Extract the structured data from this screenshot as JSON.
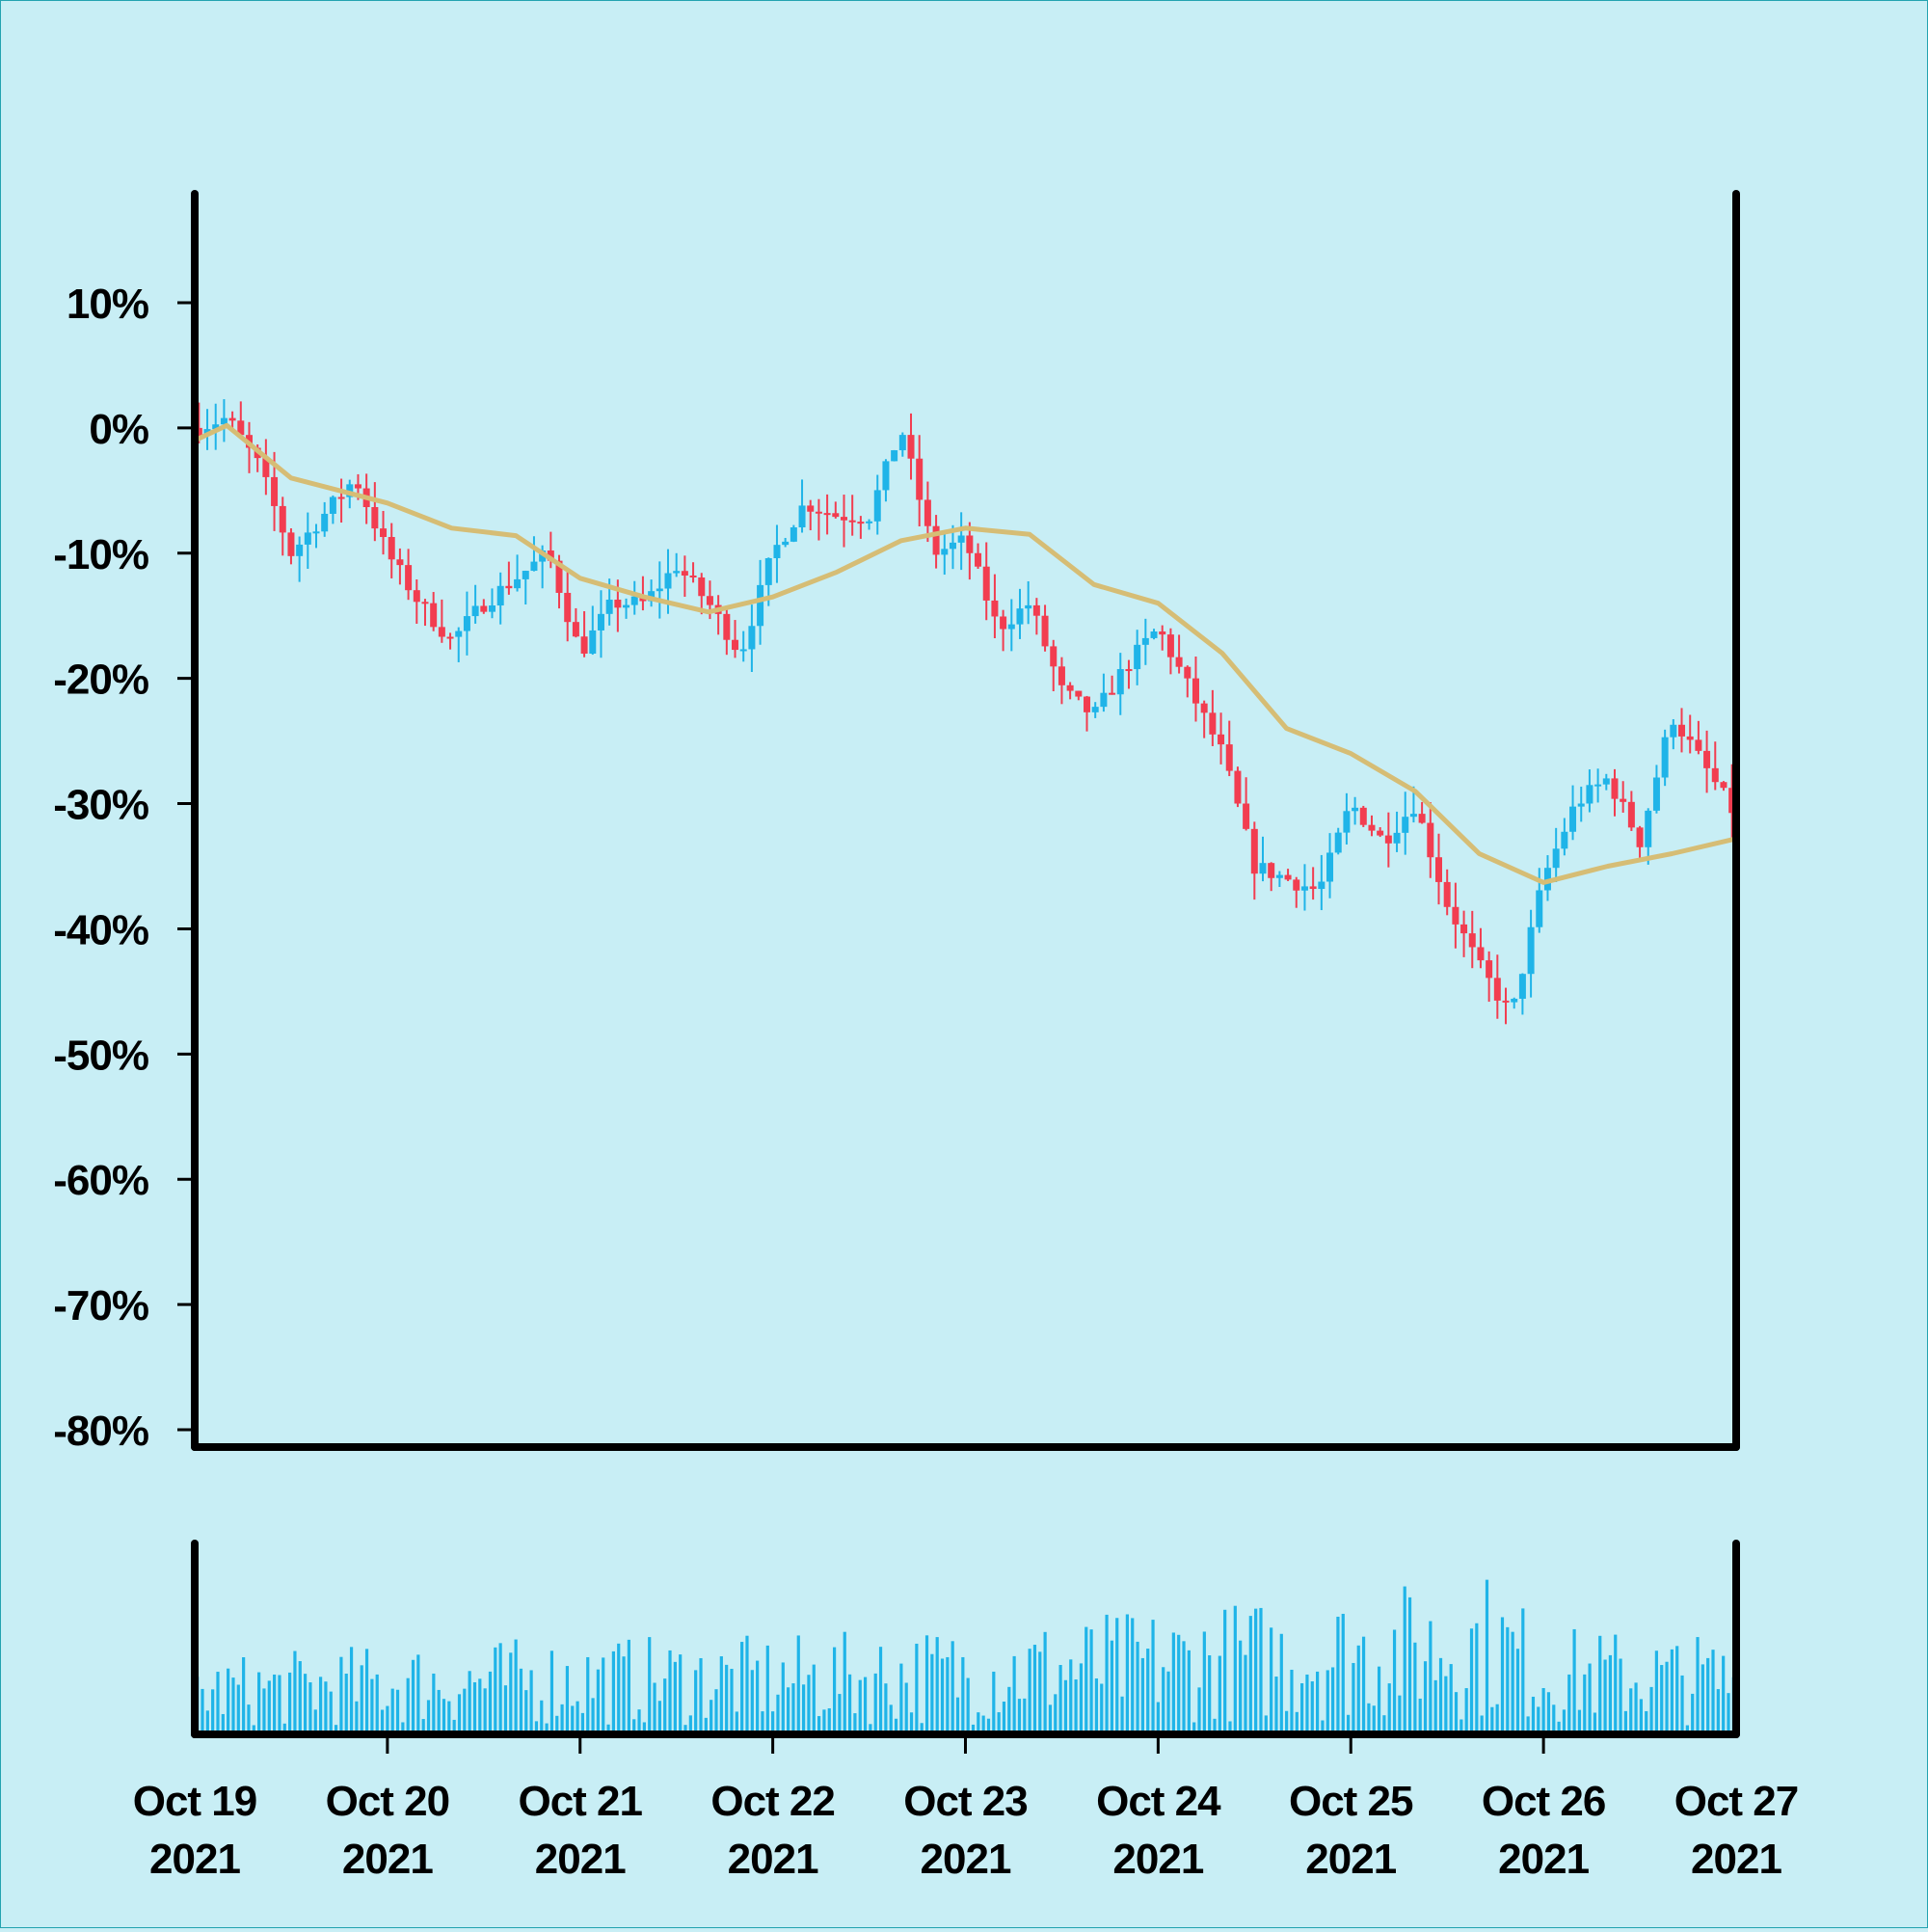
{
  "chart_data": {
    "type": "candlestick",
    "x_range": [
      "2021-10-19",
      "2021-10-27"
    ],
    "x_tick_labels": [
      {
        "month_day": "Oct 19",
        "year": "2021"
      },
      {
        "month_day": "Oct 20",
        "year": "2021"
      },
      {
        "month_day": "Oct 21",
        "year": "2021"
      },
      {
        "month_day": "Oct 22",
        "year": "2021"
      },
      {
        "month_day": "Oct 23",
        "year": "2021"
      },
      {
        "month_day": "Oct 24",
        "year": "2021"
      },
      {
        "month_day": "Oct 25",
        "year": "2021"
      },
      {
        "month_day": "Oct 26",
        "year": "2021"
      },
      {
        "month_day": "Oct 27",
        "year": "2021"
      }
    ],
    "y_ticks": [
      10,
      0,
      -10,
      -20,
      -30,
      -40,
      -50,
      -60,
      -70,
      -80
    ],
    "y_tick_labels": [
      "10%",
      "0%",
      "-10%",
      "-20%",
      "-30%",
      "-40%",
      "-50%",
      "-60%",
      "-70%",
      "-80%"
    ],
    "ylim": [
      -80,
      10
    ],
    "grid": false,
    "colors": {
      "up": "#1fb4e8",
      "down": "#f23d50",
      "moving_average": "#d6bd75",
      "volume": "#1fb4e8",
      "axis": "#000000",
      "background": "#c8eef5"
    },
    "close_path_pct": [
      [
        "2021-10-19 00:00",
        0
      ],
      [
        "2021-10-19 04:00",
        0.8
      ],
      [
        "2021-10-19 08:00",
        -3
      ],
      [
        "2021-10-19 12:00",
        -10
      ],
      [
        "2021-10-19 16:00",
        -7
      ],
      [
        "2021-10-19 20:00",
        -4
      ],
      [
        "2021-10-20 00:00",
        -10
      ],
      [
        "2021-10-20 04:00",
        -14
      ],
      [
        "2021-10-20 08:00",
        -17
      ],
      [
        "2021-10-20 12:00",
        -14
      ],
      [
        "2021-10-20 16:00",
        -12
      ],
      [
        "2021-10-20 20:00",
        -10
      ],
      [
        "2021-10-21 00:00",
        -18
      ],
      [
        "2021-10-21 04:00",
        -14
      ],
      [
        "2021-10-21 08:00",
        -14
      ],
      [
        "2021-10-21 12:00",
        -11
      ],
      [
        "2021-10-21 16:00",
        -14
      ],
      [
        "2021-10-21 20:00",
        -18
      ],
      [
        "2021-10-22 00:00",
        -10
      ],
      [
        "2021-10-22 04:00",
        -6
      ],
      [
        "2021-10-22 08:00",
        -7
      ],
      [
        "2021-10-22 12:00",
        -7
      ],
      [
        "2021-10-22 16:00",
        0
      ],
      [
        "2021-10-22 20:00",
        -10
      ],
      [
        "2021-10-23 00:00",
        -9
      ],
      [
        "2021-10-23 04:00",
        -16
      ],
      [
        "2021-10-23 08:00",
        -14
      ],
      [
        "2021-10-23 12:00",
        -21
      ],
      [
        "2021-10-23 16:00",
        -23
      ],
      [
        "2021-10-23 20:00",
        -19
      ],
      [
        "2021-10-24 00:00",
        -16
      ],
      [
        "2021-10-24 04:00",
        -21
      ],
      [
        "2021-10-24 08:00",
        -26
      ],
      [
        "2021-10-24 12:00",
        -35
      ],
      [
        "2021-10-24 16:00",
        -36
      ],
      [
        "2021-10-24 20:00",
        -37
      ],
      [
        "2021-10-25 00:00",
        -30
      ],
      [
        "2021-10-25 04:00",
        -33
      ],
      [
        "2021-10-25 08:00",
        -30
      ],
      [
        "2021-10-25 12:00",
        -38
      ],
      [
        "2021-10-25 16:00",
        -43
      ],
      [
        "2021-10-25 20:00",
        -47
      ],
      [
        "2021-10-26 00:00",
        -36
      ],
      [
        "2021-10-26 04:00",
        -30
      ],
      [
        "2021-10-26 08:00",
        -28
      ],
      [
        "2021-10-26 12:00",
        -33
      ],
      [
        "2021-10-26 16:00",
        -23
      ],
      [
        "2021-10-26 20:00",
        -27
      ],
      [
        "2021-10-27 00:00",
        -31
      ]
    ],
    "moving_average_pct": [
      [
        "2021-10-19 00:00",
        -1
      ],
      [
        "2021-10-19 04:00",
        0.2
      ],
      [
        "2021-10-19 12:00",
        -4
      ],
      [
        "2021-10-20 00:00",
        -6
      ],
      [
        "2021-10-20 08:00",
        -8
      ],
      [
        "2021-10-20 16:00",
        -8.6
      ],
      [
        "2021-10-21 00:00",
        -12
      ],
      [
        "2021-10-21 08:00",
        -13.5
      ],
      [
        "2021-10-21 16:00",
        -14.7
      ],
      [
        "2021-10-22 00:00",
        -13.5
      ],
      [
        "2021-10-22 08:00",
        -11.5
      ],
      [
        "2021-10-22 16:00",
        -9
      ],
      [
        "2021-10-23 00:00",
        -8
      ],
      [
        "2021-10-23 08:00",
        -8.5
      ],
      [
        "2021-10-23 16:00",
        -12.5
      ],
      [
        "2021-10-24 00:00",
        -14
      ],
      [
        "2021-10-24 08:00",
        -18
      ],
      [
        "2021-10-24 16:00",
        -24
      ],
      [
        "2021-10-25 00:00",
        -26
      ],
      [
        "2021-10-25 08:00",
        -29
      ],
      [
        "2021-10-25 16:00",
        -34
      ],
      [
        "2021-10-26 00:00",
        -36.3
      ],
      [
        "2021-10-26 08:00",
        -35
      ],
      [
        "2021-10-26 16:00",
        -34
      ],
      [
        "2021-10-27 00:00",
        -32.8
      ]
    ],
    "volume_relative_path": [
      [
        "2021-10-19",
        0.35
      ],
      [
        "2021-10-20",
        0.42
      ],
      [
        "2021-10-21",
        0.45
      ],
      [
        "2021-10-22",
        0.45
      ],
      [
        "2021-10-23",
        0.5
      ],
      [
        "2021-10-24",
        0.58
      ],
      [
        "2021-10-25",
        0.66
      ],
      [
        "2021-10-25 18:00",
        0.75
      ],
      [
        "2021-10-26",
        0.5
      ],
      [
        "2021-10-27",
        0.45
      ]
    ]
  }
}
